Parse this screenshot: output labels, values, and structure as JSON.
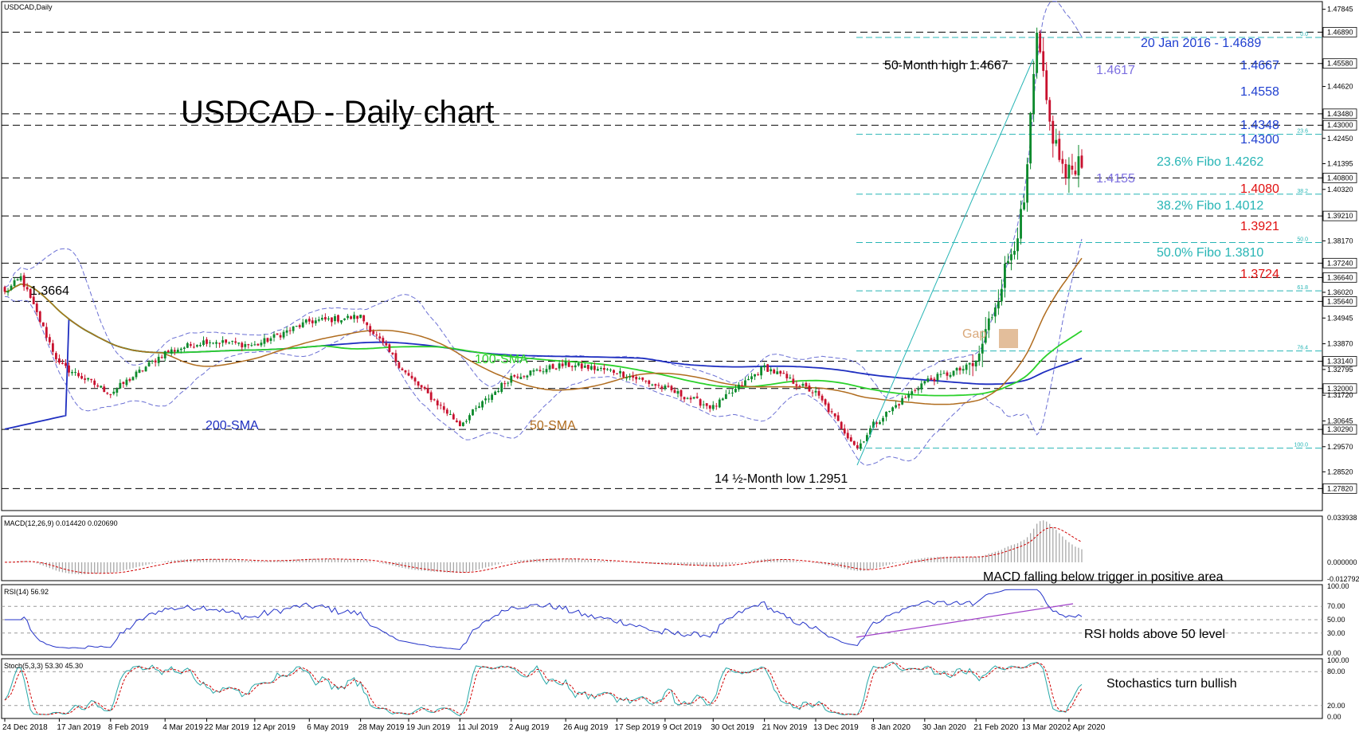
{
  "chart_data": [
    {
      "type": "candlestick",
      "symbol_label": "USDCAD,Daily",
      "title": "USDCAD - Daily chart",
      "ylim": [
        1.27,
        1.481
      ],
      "y_ticks": [
        "1.47845",
        "1.46890",
        "1.45580",
        "1.44620",
        "1.43480",
        "1.43000",
        "1.42450",
        "1.41395",
        "1.40800",
        "1.40320",
        "1.39210",
        "1.38170",
        "1.37240",
        "1.36640",
        "1.36020",
        "1.35640",
        "1.34945",
        "1.33870",
        "1.33140",
        "1.32795",
        "1.32000",
        "1.31720",
        "1.30645",
        "1.30290",
        "1.29570",
        "1.28520",
        "1.27820"
      ],
      "highlighted_ticks": [
        "1.46890",
        "1.45580",
        "1.43480",
        "1.43000",
        "1.40800",
        "1.39210",
        "1.37240",
        "1.36640",
        "1.35640",
        "1.33140",
        "1.32000",
        "1.30290",
        "1.27820"
      ],
      "x_labels": [
        "24 Dec 2018",
        "17 Jan 2019",
        "8 Feb 2019",
        "4 Mar 2019",
        "22 Mar 2019",
        "12 Apr 2019",
        "6 May 2019",
        "28 May 2019",
        "19 Jun 2019",
        "11 Jul 2019",
        "2 Aug 2019",
        "26 Aug 2019",
        "17 Sep 2019",
        "9 Oct 2019",
        "30 Oct 2019",
        "21 Nov 2019",
        "13 Dec 2019",
        "8 Jan 2020",
        "30 Jan 2020",
        "21 Feb 2020",
        "13 Mar 2020",
        "2 Apr 2020"
      ],
      "key_points": [
        {
          "date": "24 Dec 2018",
          "close": 1.36
        },
        {
          "date": "31 Dec 2018",
          "close": 1.3664
        },
        {
          "date": "17 Jan 2019",
          "close": 1.33
        },
        {
          "date": "8 Feb 2019",
          "close": 1.318
        },
        {
          "date": "4 Mar 2019",
          "close": 1.335
        },
        {
          "date": "22 Mar 2019",
          "close": 1.34
        },
        {
          "date": "12 Apr 2019",
          "close": 1.338
        },
        {
          "date": "6 May 2019",
          "close": 1.348
        },
        {
          "date": "28 May 2019",
          "close": 1.35
        },
        {
          "date": "19 Jun 2019",
          "close": 1.325
        },
        {
          "date": "11 Jul 2019",
          "close": 1.305
        },
        {
          "date": "2 Aug 2019",
          "close": 1.325
        },
        {
          "date": "26 Aug 2019",
          "close": 1.33
        },
        {
          "date": "17 Sep 2019",
          "close": 1.327
        },
        {
          "date": "9 Oct 2019",
          "close": 1.32
        },
        {
          "date": "30 Oct 2019",
          "close": 1.312
        },
        {
          "date": "21 Nov 2019",
          "close": 1.329
        },
        {
          "date": "13 Dec 2019",
          "close": 1.318
        },
        {
          "date": "31 Dec 2019",
          "close": 1.2951
        },
        {
          "date": "8 Jan 2020",
          "close": 1.305
        },
        {
          "date": "30 Jan 2020",
          "close": 1.323
        },
        {
          "date": "21 Feb 2020",
          "close": 1.33
        },
        {
          "date": "13 Mar 2020",
          "close": 1.395
        },
        {
          "date": "19 Mar 2020",
          "close": 1.4667
        },
        {
          "date": "25 Mar 2020",
          "close": 1.43
        },
        {
          "date": "31 Mar 2020",
          "close": 1.408
        },
        {
          "date": "6 Apr 2020",
          "close": 1.4155
        }
      ],
      "horizontal_levels": [
        1.4689,
        1.4558,
        1.4348,
        1.43,
        1.408,
        1.3921,
        1.3724,
        1.3664,
        1.3564,
        1.3314,
        1.32,
        1.3029,
        1.2782
      ],
      "fibonacci": {
        "low": 1.2951,
        "high": 1.4667,
        "levels": [
          {
            "label": "0.0",
            "value": 1.4667
          },
          {
            "label": "23.6",
            "value": 1.4262
          },
          {
            "label": "38.2",
            "value": 1.4012
          },
          {
            "label": "50.0",
            "value": 1.381
          },
          {
            "label": "61.8",
            "value": 1.3608
          },
          {
            "label": "76.4",
            "value": 1.3357
          },
          {
            "label": "100.0",
            "value": 1.2951
          }
        ]
      },
      "indicators": [
        "50-SMA",
        "100-SMA",
        "200-SMA",
        "Bollinger Bands"
      ],
      "annotations": {
        "title": "USDCAD - Daily chart",
        "high_50m": "50-Month high 1.4667",
        "low_14m": "14 ½-Month low 1.2951",
        "level_1_3664": "1.3664",
        "lvl_2016": "20 Jan 2016 - 1.4689",
        "lvl_14667": "1.4667",
        "lvl_14617": "1.4617",
        "lvl_14558": "1.4558",
        "lvl_14348": "1.4348",
        "lvl_14300": "1.4300",
        "fibo_236": "23.6% Fibo 1.4262",
        "lvl_14155": "1.4155",
        "lvl_14080": "1.4080",
        "fibo_382": "38.2% Fibo 1.4012",
        "lvl_13921": "1.3921",
        "fibo_50": "50.0% Fibo 1.3810",
        "lvl_13724": "1.3724",
        "gap": "Gap",
        "sma100": "100-SMA",
        "sma50": "50-SMA",
        "sma200": "200-SMA"
      }
    },
    {
      "type": "histogram",
      "label": "MACD(12,26,9) 0.014420 0.020690",
      "y_ticks": [
        "0.033938",
        "0.000000",
        "-0.012792"
      ],
      "annotation": "MACD falling below trigger in positive area"
    },
    {
      "type": "line",
      "label": "RSI(14) 56.92",
      "y_ticks": [
        "100.00",
        "70.00",
        "50.00",
        "30.00",
        "0.00"
      ],
      "annotation": "RSI holds above 50 level"
    },
    {
      "type": "line",
      "label": "Stoch(5,3,3) 53.30 45.30",
      "y_ticks": [
        "100.00",
        "80.00",
        "20.00",
        "0.00"
      ],
      "annotation": "Stochastics turn bullish"
    }
  ],
  "colors": {
    "bull": "#0c8a2c",
    "bear": "#c8102e",
    "sma50": "#b06c1e",
    "sma100": "#2bd12b",
    "sma200": "#1e2ec0",
    "bollinger": "#6b70d4",
    "fibo": "#27b5b5",
    "macd_hist": "#a8a8a8",
    "signal": "#d10000",
    "rsi": "#2332c8",
    "trendline": "#a040c8",
    "stoch_main": "#27a8a8",
    "annotation_blue": "#1f3fd0",
    "annotation_red": "#e01010",
    "annotation_purple": "#7c6fe0",
    "gap": "#d9a87a"
  }
}
